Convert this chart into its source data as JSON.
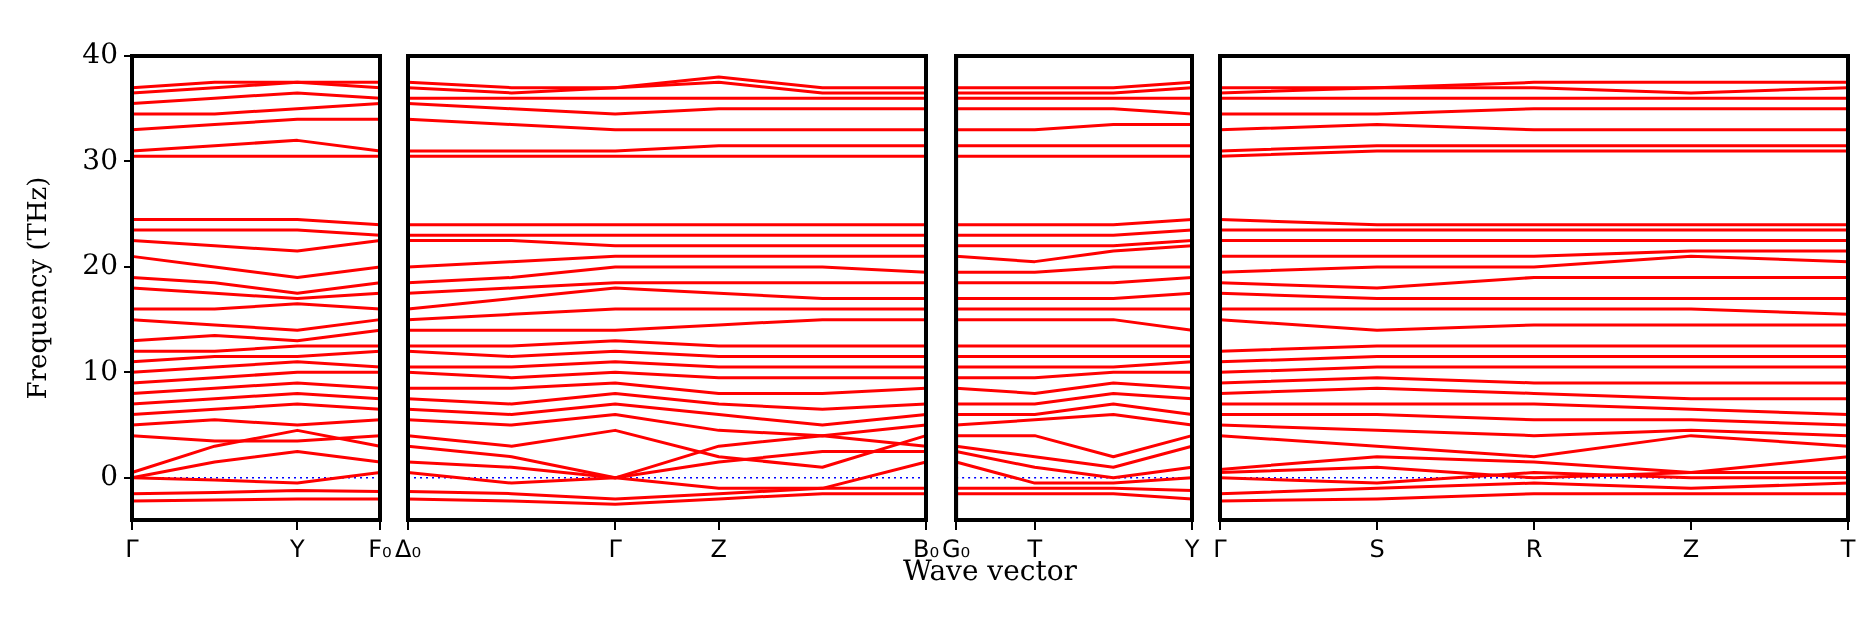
{
  "chart_data": [
    {
      "type": "line",
      "ylabel": "Frequency (THz)",
      "categories": [
        "Γ",
        null,
        "Y",
        "F₀"
      ],
      "ylim": [
        -4,
        40
      ],
      "yticks": [
        0,
        10,
        20,
        30,
        40
      ],
      "legend": false,
      "ref_lines": [
        {
          "axis": "y",
          "value": 0,
          "color": "#0000ff",
          "line_style": "dotted"
        }
      ],
      "series": [
        {
          "color": "#ff0000",
          "values": [
            -2.2,
            -2.1,
            -2.0,
            -2.0
          ]
        },
        {
          "color": "#ff0000",
          "values": [
            -1.5,
            -1.4,
            -1.2,
            -1.3
          ]
        },
        {
          "color": "#ff0000",
          "values": [
            0,
            -0.2,
            -0.5,
            0.5
          ]
        },
        {
          "color": "#ff0000",
          "values": [
            0,
            1.5,
            2.5,
            1.5
          ]
        },
        {
          "color": "#ff0000",
          "values": [
            0.5,
            3,
            4.5,
            3
          ]
        },
        {
          "color": "#ff0000",
          "values": [
            4,
            3.5,
            3.5,
            4
          ]
        },
        {
          "color": "#ff0000",
          "values": [
            5,
            5.5,
            5,
            5.5
          ]
        },
        {
          "color": "#ff0000",
          "values": [
            6,
            6.5,
            7,
            6.5
          ]
        },
        {
          "color": "#ff0000",
          "values": [
            7,
            7.5,
            8,
            7.5
          ]
        },
        {
          "color": "#ff0000",
          "values": [
            8,
            8.5,
            9,
            8.5
          ]
        },
        {
          "color": "#ff0000",
          "values": [
            9,
            9.5,
            10,
            10
          ]
        },
        {
          "color": "#ff0000",
          "values": [
            10,
            10.5,
            11,
            10.5
          ]
        },
        {
          "color": "#ff0000",
          "values": [
            11,
            11.5,
            11.5,
            12
          ]
        },
        {
          "color": "#ff0000",
          "values": [
            12,
            12,
            12.5,
            12.5
          ]
        },
        {
          "color": "#ff0000",
          "values": [
            13,
            13.5,
            13,
            14
          ]
        },
        {
          "color": "#ff0000",
          "values": [
            15,
            14.5,
            14,
            15
          ]
        },
        {
          "color": "#ff0000",
          "values": [
            16,
            16,
            16.5,
            16
          ]
        },
        {
          "color": "#ff0000",
          "values": [
            18,
            17.5,
            17,
            17.5
          ]
        },
        {
          "color": "#ff0000",
          "values": [
            19,
            18.5,
            17.5,
            18.5
          ]
        },
        {
          "color": "#ff0000",
          "values": [
            21,
            20,
            19,
            20
          ]
        },
        {
          "color": "#ff0000",
          "values": [
            22.5,
            22,
            21.5,
            22.5
          ]
        },
        {
          "color": "#ff0000",
          "values": [
            23.5,
            23.5,
            23.5,
            23
          ]
        },
        {
          "color": "#ff0000",
          "values": [
            24.5,
            24.5,
            24.5,
            24
          ]
        },
        {
          "color": "#ff0000",
          "values": [
            30.5,
            30.5,
            30.5,
            30.5
          ]
        },
        {
          "color": "#ff0000",
          "values": [
            31,
            31.5,
            32,
            31
          ]
        },
        {
          "color": "#ff0000",
          "values": [
            33,
            33.5,
            34,
            34
          ]
        },
        {
          "color": "#ff0000",
          "values": [
            34.5,
            34.5,
            35,
            35.5
          ]
        },
        {
          "color": "#ff0000",
          "values": [
            35.5,
            36,
            36.5,
            36
          ]
        },
        {
          "color": "#ff0000",
          "values": [
            36.5,
            37,
            37.5,
            37
          ]
        },
        {
          "color": "#ff0000",
          "values": [
            37,
            37.5,
            37.5,
            37.5
          ]
        }
      ]
    },
    {
      "type": "line",
      "xlabel": "Wave vector",
      "categories": [
        "Δ₀",
        null,
        "Γ",
        "Z",
        null,
        "B₀"
      ],
      "ylim": [
        -4,
        40
      ],
      "yticks": [
        0,
        10,
        20,
        30,
        40
      ],
      "tick_labels": "x",
      "legend": false,
      "ref_lines": [
        {
          "axis": "y",
          "value": 0,
          "color": "#0000ff",
          "line_style": "dotted"
        }
      ],
      "series": [
        {
          "color": "#ff0000",
          "values": [
            -2.0,
            -2.2,
            -2.5,
            -2.0,
            -1.5,
            -1.5
          ]
        },
        {
          "color": "#ff0000",
          "values": [
            -1.3,
            -1.5,
            -2.0,
            -1.5,
            -1.0,
            -1.0
          ]
        },
        {
          "color": "#ff0000",
          "values": [
            0.5,
            -0.5,
            0,
            -1.0,
            -1.0,
            1.5
          ]
        },
        {
          "color": "#ff0000",
          "values": [
            1.5,
            1,
            0,
            1.5,
            2.5,
            2.5
          ]
        },
        {
          "color": "#ff0000",
          "values": [
            3,
            2,
            0,
            3,
            4,
            3
          ]
        },
        {
          "color": "#ff0000",
          "values": [
            4,
            3,
            4.5,
            2,
            1,
            4
          ]
        },
        {
          "color": "#ff0000",
          "values": [
            5.5,
            5,
            6,
            4.5,
            4,
            5
          ]
        },
        {
          "color": "#ff0000",
          "values": [
            6.5,
            6,
            7,
            6,
            5,
            6
          ]
        },
        {
          "color": "#ff0000",
          "values": [
            7.5,
            7,
            8,
            7,
            6.5,
            7
          ]
        },
        {
          "color": "#ff0000",
          "values": [
            8.5,
            8.5,
            9,
            8,
            8,
            8.5
          ]
        },
        {
          "color": "#ff0000",
          "values": [
            10,
            9.5,
            10,
            9.5,
            9.5,
            9.5
          ]
        },
        {
          "color": "#ff0000",
          "values": [
            10.5,
            10.5,
            11,
            10.5,
            10.5,
            10.5
          ]
        },
        {
          "color": "#ff0000",
          "values": [
            12,
            11.5,
            12,
            11.5,
            11.5,
            11.5
          ]
        },
        {
          "color": "#ff0000",
          "values": [
            12.5,
            12.5,
            13,
            12.5,
            12.5,
            12.5
          ]
        },
        {
          "color": "#ff0000",
          "values": [
            14,
            14,
            14,
            14.5,
            15,
            15
          ]
        },
        {
          "color": "#ff0000",
          "values": [
            15,
            15.5,
            16,
            16,
            16,
            16
          ]
        },
        {
          "color": "#ff0000",
          "values": [
            16,
            17,
            18,
            17.5,
            17,
            17
          ]
        },
        {
          "color": "#ff0000",
          "values": [
            17.5,
            18,
            18.5,
            18.5,
            18.5,
            18.5
          ]
        },
        {
          "color": "#ff0000",
          "values": [
            18.5,
            19,
            20,
            20,
            20,
            19.5
          ]
        },
        {
          "color": "#ff0000",
          "values": [
            20,
            20.5,
            21,
            21,
            21,
            21
          ]
        },
        {
          "color": "#ff0000",
          "values": [
            22.5,
            22.5,
            22,
            22,
            22,
            22
          ]
        },
        {
          "color": "#ff0000",
          "values": [
            23,
            23,
            23,
            23,
            23,
            23
          ]
        },
        {
          "color": "#ff0000",
          "values": [
            24,
            24,
            24,
            24,
            24,
            24
          ]
        },
        {
          "color": "#ff0000",
          "values": [
            30.5,
            30.5,
            30.5,
            30.5,
            30.5,
            30.5
          ]
        },
        {
          "color": "#ff0000",
          "values": [
            31,
            31,
            31,
            31.5,
            31.5,
            31.5
          ]
        },
        {
          "color": "#ff0000",
          "values": [
            34,
            33.5,
            33,
            33,
            33,
            33
          ]
        },
        {
          "color": "#ff0000",
          "values": [
            35.5,
            35,
            34.5,
            35,
            35,
            35
          ]
        },
        {
          "color": "#ff0000",
          "values": [
            36,
            36,
            36,
            36,
            36,
            36
          ]
        },
        {
          "color": "#ff0000",
          "values": [
            37,
            36.5,
            37,
            37.5,
            36.5,
            36.5
          ]
        },
        {
          "color": "#ff0000",
          "values": [
            37.5,
            37,
            37,
            38,
            37,
            37
          ]
        }
      ]
    },
    {
      "type": "line",
      "categories": [
        "G₀",
        "T",
        null,
        "Y"
      ],
      "ylim": [
        -4,
        40
      ],
      "yticks": [
        0,
        10,
        20,
        30,
        40
      ],
      "tick_labels": "x",
      "legend": false,
      "ref_lines": [
        {
          "axis": "y",
          "value": 0,
          "color": "#0000ff",
          "line_style": "dotted"
        }
      ],
      "series": [
        {
          "color": "#ff0000",
          "values": [
            -1.5,
            -1.5,
            -1.5,
            -2.0
          ]
        },
        {
          "color": "#ff0000",
          "values": [
            -1.0,
            -1.0,
            -1.0,
            -1.2
          ]
        },
        {
          "color": "#ff0000",
          "values": [
            1.5,
            -0.5,
            -0.5,
            0
          ]
        },
        {
          "color": "#ff0000",
          "values": [
            2.5,
            1,
            0,
            1
          ]
        },
        {
          "color": "#ff0000",
          "values": [
            3,
            2,
            1,
            3
          ]
        },
        {
          "color": "#ff0000",
          "values": [
            4,
            4,
            2,
            4
          ]
        },
        {
          "color": "#ff0000",
          "values": [
            5,
            5.5,
            6,
            5
          ]
        },
        {
          "color": "#ff0000",
          "values": [
            6,
            6,
            7,
            6
          ]
        },
        {
          "color": "#ff0000",
          "values": [
            7,
            7,
            8,
            7.5
          ]
        },
        {
          "color": "#ff0000",
          "values": [
            8.5,
            8,
            9,
            8.5
          ]
        },
        {
          "color": "#ff0000",
          "values": [
            9.5,
            9.5,
            10,
            10
          ]
        },
        {
          "color": "#ff0000",
          "values": [
            10.5,
            10.5,
            10.5,
            11
          ]
        },
        {
          "color": "#ff0000",
          "values": [
            11.5,
            11.5,
            11.5,
            11.5
          ]
        },
        {
          "color": "#ff0000",
          "values": [
            12.5,
            12.5,
            12.5,
            12.5
          ]
        },
        {
          "color": "#ff0000",
          "values": [
            15,
            15,
            15,
            14
          ]
        },
        {
          "color": "#ff0000",
          "values": [
            16,
            16,
            16,
            16
          ]
        },
        {
          "color": "#ff0000",
          "values": [
            17,
            17,
            17,
            17.5
          ]
        },
        {
          "color": "#ff0000",
          "values": [
            18.5,
            18.5,
            18.5,
            19
          ]
        },
        {
          "color": "#ff0000",
          "values": [
            19.5,
            19.5,
            20,
            20
          ]
        },
        {
          "color": "#ff0000",
          "values": [
            21,
            20.5,
            21.5,
            22
          ]
        },
        {
          "color": "#ff0000",
          "values": [
            22,
            22,
            22,
            22.5
          ]
        },
        {
          "color": "#ff0000",
          "values": [
            23,
            23,
            23,
            23.5
          ]
        },
        {
          "color": "#ff0000",
          "values": [
            24,
            24,
            24,
            24.5
          ]
        },
        {
          "color": "#ff0000",
          "values": [
            30.5,
            30.5,
            30.5,
            30.5
          ]
        },
        {
          "color": "#ff0000",
          "values": [
            31.5,
            31.5,
            31.5,
            31.5
          ]
        },
        {
          "color": "#ff0000",
          "values": [
            33,
            33,
            33.5,
            33.5
          ]
        },
        {
          "color": "#ff0000",
          "values": [
            35,
            35,
            35,
            34.5
          ]
        },
        {
          "color": "#ff0000",
          "values": [
            36,
            36,
            36,
            36
          ]
        },
        {
          "color": "#ff0000",
          "values": [
            36.5,
            36.5,
            36.5,
            37
          ]
        },
        {
          "color": "#ff0000",
          "values": [
            37,
            37,
            37,
            37.5
          ]
        }
      ]
    },
    {
      "type": "line",
      "categories": [
        "Γ",
        "S",
        "R",
        "Z",
        "T"
      ],
      "ylim": [
        -4,
        40
      ],
      "yticks": [
        0,
        10,
        20,
        30,
        40
      ],
      "tick_labels": "x",
      "legend": false,
      "ref_lines": [
        {
          "axis": "y",
          "value": 0,
          "color": "#0000ff",
          "line_style": "dotted"
        }
      ],
      "series": [
        {
          "color": "#ff0000",
          "values": [
            -2.2,
            -2.0,
            -1.5,
            -1.5,
            -1.5
          ]
        },
        {
          "color": "#ff0000",
          "values": [
            -1.5,
            -1.0,
            -0.5,
            -1.0,
            -0.5
          ]
        },
        {
          "color": "#ff0000",
          "values": [
            0,
            -0.5,
            0.5,
            0,
            0
          ]
        },
        {
          "color": "#ff0000",
          "values": [
            0.5,
            1,
            0,
            0.5,
            0.5
          ]
        },
        {
          "color": "#ff0000",
          "values": [
            0.8,
            2,
            1.5,
            0.5,
            2
          ]
        },
        {
          "color": "#ff0000",
          "values": [
            4,
            3,
            2,
            4,
            3
          ]
        },
        {
          "color": "#ff0000",
          "values": [
            5,
            4.5,
            4,
            4.5,
            4
          ]
        },
        {
          "color": "#ff0000",
          "values": [
            6,
            6,
            5.5,
            5.5,
            5
          ]
        },
        {
          "color": "#ff0000",
          "values": [
            7,
            7,
            7,
            6.5,
            6
          ]
        },
        {
          "color": "#ff0000",
          "values": [
            8,
            8.5,
            8,
            7.5,
            7.5
          ]
        },
        {
          "color": "#ff0000",
          "values": [
            9,
            9.5,
            9,
            9,
            9
          ]
        },
        {
          "color": "#ff0000",
          "values": [
            10,
            10.5,
            10.5,
            10.5,
            10.5
          ]
        },
        {
          "color": "#ff0000",
          "values": [
            11,
            11.5,
            11.5,
            11.5,
            11.5
          ]
        },
        {
          "color": "#ff0000",
          "values": [
            12,
            12.5,
            12.5,
            12.5,
            12.5
          ]
        },
        {
          "color": "#ff0000",
          "values": [
            15,
            14,
            14.5,
            14.5,
            14.5
          ]
        },
        {
          "color": "#ff0000",
          "values": [
            16,
            16,
            16,
            16,
            15.5
          ]
        },
        {
          "color": "#ff0000",
          "values": [
            17.5,
            17,
            17,
            17,
            17
          ]
        },
        {
          "color": "#ff0000",
          "values": [
            18.5,
            18,
            19,
            19,
            19
          ]
        },
        {
          "color": "#ff0000",
          "values": [
            19.5,
            20,
            20,
            21,
            20.5
          ]
        },
        {
          "color": "#ff0000",
          "values": [
            21,
            21,
            21,
            21.5,
            21.5
          ]
        },
        {
          "color": "#ff0000",
          "values": [
            22.5,
            22.5,
            22.5,
            22.5,
            22.5
          ]
        },
        {
          "color": "#ff0000",
          "values": [
            23.5,
            23.5,
            23.5,
            23.5,
            23.5
          ]
        },
        {
          "color": "#ff0000",
          "values": [
            24.5,
            24,
            24,
            24,
            24
          ]
        },
        {
          "color": "#ff0000",
          "values": [
            30.5,
            31,
            31,
            31,
            31
          ]
        },
        {
          "color": "#ff0000",
          "values": [
            31,
            31.5,
            31.5,
            31.5,
            31.5
          ]
        },
        {
          "color": "#ff0000",
          "values": [
            33,
            33.5,
            33,
            33,
            33
          ]
        },
        {
          "color": "#ff0000",
          "values": [
            34.5,
            34.5,
            35,
            35,
            35
          ]
        },
        {
          "color": "#ff0000",
          "values": [
            36,
            36,
            36,
            36,
            36
          ]
        },
        {
          "color": "#ff0000",
          "values": [
            36.5,
            37,
            37,
            36.5,
            37
          ]
        },
        {
          "color": "#ff0000",
          "values": [
            37,
            37,
            37.5,
            37.5,
            37.5
          ]
        }
      ]
    }
  ]
}
